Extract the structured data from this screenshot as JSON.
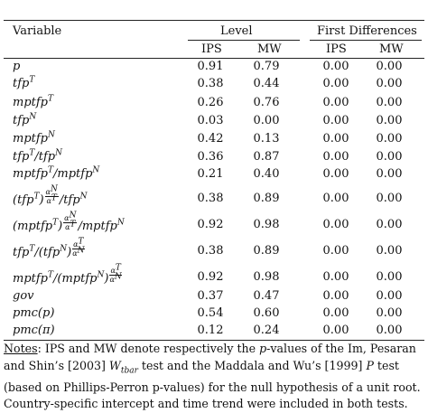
{
  "table": {
    "header": {
      "variable": "Variable",
      "level": "Level",
      "first_diff": "First Differences",
      "ips": "IPS",
      "mw": "MW"
    },
    "rows": [
      {
        "name": "p",
        "level_ips": "0.91",
        "level_mw": "0.79",
        "fd_ips": "0.00",
        "fd_mw": "0.00"
      },
      {
        "name": "tfp^T",
        "level_ips": "0.38",
        "level_mw": "0.44",
        "fd_ips": "0.00",
        "fd_mw": "0.00"
      },
      {
        "name": "mptfp^T",
        "level_ips": "0.26",
        "level_mw": "0.76",
        "fd_ips": "0.00",
        "fd_mw": "0.00"
      },
      {
        "name": "tfp^N",
        "level_ips": "0.03",
        "level_mw": "0.00",
        "fd_ips": "0.00",
        "fd_mw": "0.00"
      },
      {
        "name": "mptfp^N",
        "level_ips": "0.42",
        "level_mw": "0.13",
        "fd_ips": "0.00",
        "fd_mw": "0.00"
      },
      {
        "name": "tfp^T/tfp^N",
        "level_ips": "0.36",
        "level_mw": "0.87",
        "fd_ips": "0.00",
        "fd_mw": "0.00"
      },
      {
        "name": "mptfp^T/mptfp^N",
        "level_ips": "0.21",
        "level_mw": "0.40",
        "fd_ips": "0.00",
        "fd_mw": "0.00"
      },
      {
        "name": "(tfp^T)^(αN/αT)/tfp^N",
        "level_ips": "0.38",
        "level_mw": "0.89",
        "fd_ips": "0.00",
        "fd_mw": "0.00"
      },
      {
        "name": "(mptfp^T)^(αN/αT)/mptfp^N",
        "level_ips": "0.92",
        "level_mw": "0.98",
        "fd_ips": "0.00",
        "fd_mw": "0.00"
      },
      {
        "name": "tfp^T/(tfp^N)^(αT/αN)",
        "level_ips": "0.38",
        "level_mw": "0.89",
        "fd_ips": "0.00",
        "fd_mw": "0.00"
      },
      {
        "name": "mptfp^T/(mptfp^N)^(αT/αN)",
        "level_ips": "0.92",
        "level_mw": "0.98",
        "fd_ips": "0.00",
        "fd_mw": "0.00"
      },
      {
        "name": "gov",
        "level_ips": "0.37",
        "level_mw": "0.47",
        "fd_ips": "0.00",
        "fd_mw": "0.00"
      },
      {
        "name": "pmc(p)",
        "level_ips": "0.54",
        "level_mw": "0.60",
        "fd_ips": "0.00",
        "fd_mw": "0.00"
      },
      {
        "name": "pmc(π)",
        "level_ips": "0.12",
        "level_mw": "0.24",
        "fd_ips": "0.00",
        "fd_mw": "0.00"
      }
    ]
  },
  "notes": {
    "label": "Notes",
    "l1a": ": IPS and MW denote respectively the ",
    "l1b": "p",
    "l1c": "-values of the Im, Pesaran",
    "l2a": "and Shin’s [2003] ",
    "l2b": "W",
    "l2c": "tbar",
    "l2d": " test and the Maddala and Wu’s [1999] ",
    "l2e": "P",
    "l2f": " test",
    "l3": "(based on Phillips-Perron p-values) for the null hypothesis of a unit root.",
    "l4": "Country-specific intercept and time trend were included in both tests."
  }
}
